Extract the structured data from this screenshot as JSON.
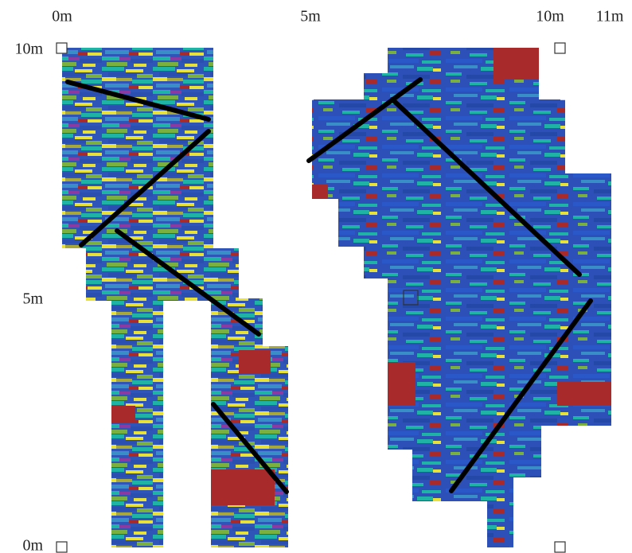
{
  "axis_labels": {
    "top": [
      "0m",
      "5m",
      "10m",
      "11m"
    ],
    "left": [
      "10m",
      "5m",
      "0m"
    ]
  }
}
